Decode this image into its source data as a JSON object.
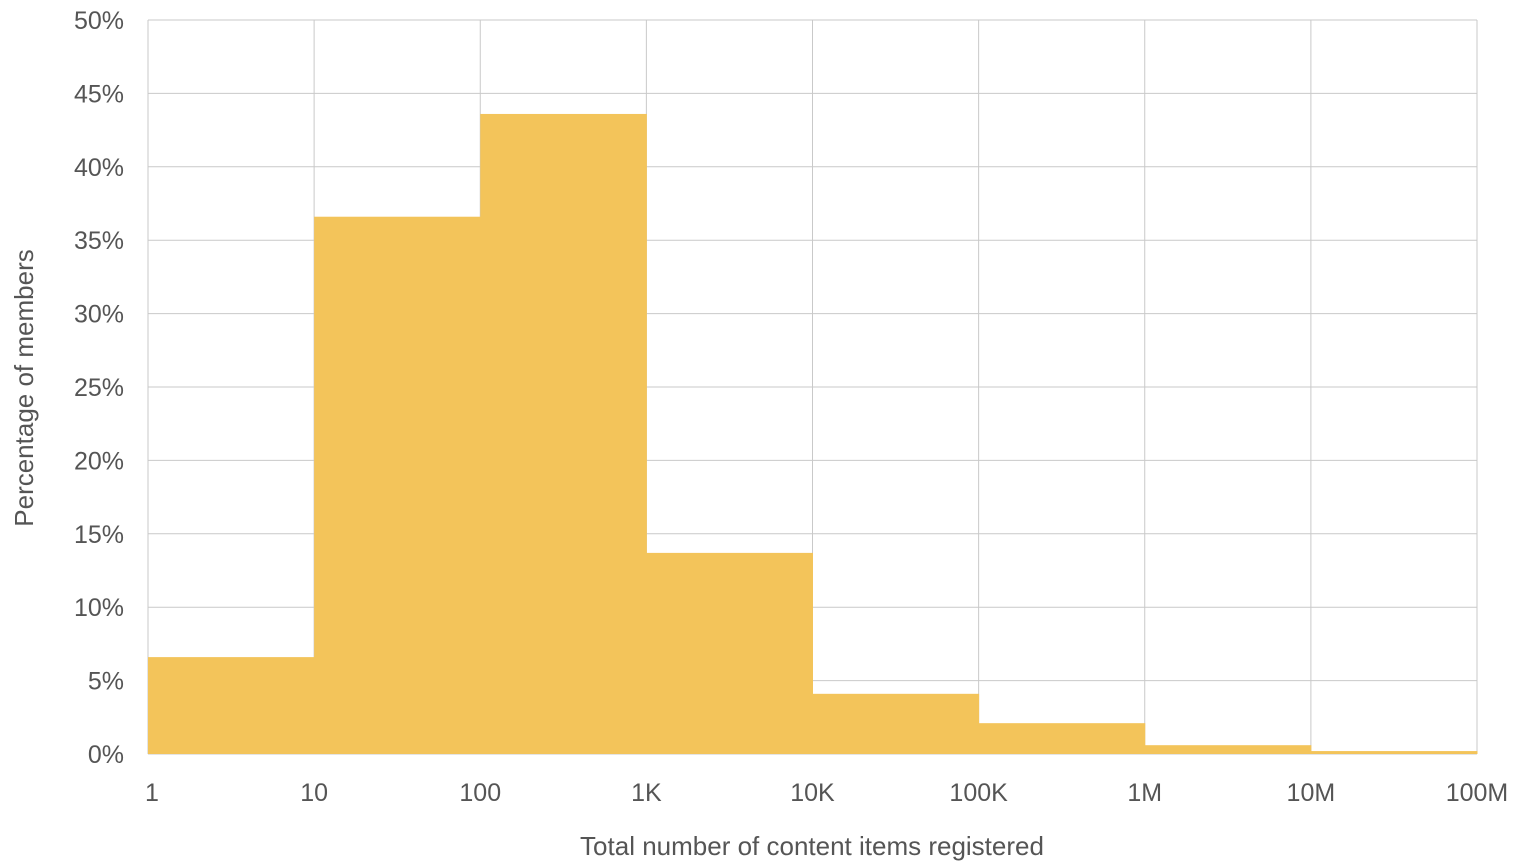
{
  "chart_data": {
    "type": "bar",
    "title": "",
    "xlabel": "Total number of content items registered",
    "ylabel": "Percentage of members",
    "x_scale": "log",
    "x_tick_labels": [
      "1",
      "10",
      "100",
      "1K",
      "10K",
      "100K",
      "1M",
      "10M",
      "100M"
    ],
    "y_tick_labels": [
      "0%",
      "5%",
      "10%",
      "15%",
      "20%",
      "25%",
      "30%",
      "35%",
      "40%",
      "45%",
      "50%"
    ],
    "ylim": [
      0,
      50
    ],
    "y_unit": "%",
    "bins": [
      {
        "from": "1",
        "to": "10",
        "value": 6.6
      },
      {
        "from": "10",
        "to": "100",
        "value": 36.6
      },
      {
        "from": "100",
        "to": "1K",
        "value": 43.6
      },
      {
        "from": "1K",
        "to": "10K",
        "value": 13.7
      },
      {
        "from": "10K",
        "to": "100K",
        "value": 4.1
      },
      {
        "from": "100K",
        "to": "1M",
        "value": 2.1
      },
      {
        "from": "1M",
        "to": "10M",
        "value": 0.6
      },
      {
        "from": "10M",
        "to": "100M",
        "value": 0.2
      }
    ],
    "grid": true,
    "legend": false,
    "colors": {
      "bar": "#f3c45a",
      "grid": "#c9c9c9",
      "text": "#555555"
    }
  }
}
